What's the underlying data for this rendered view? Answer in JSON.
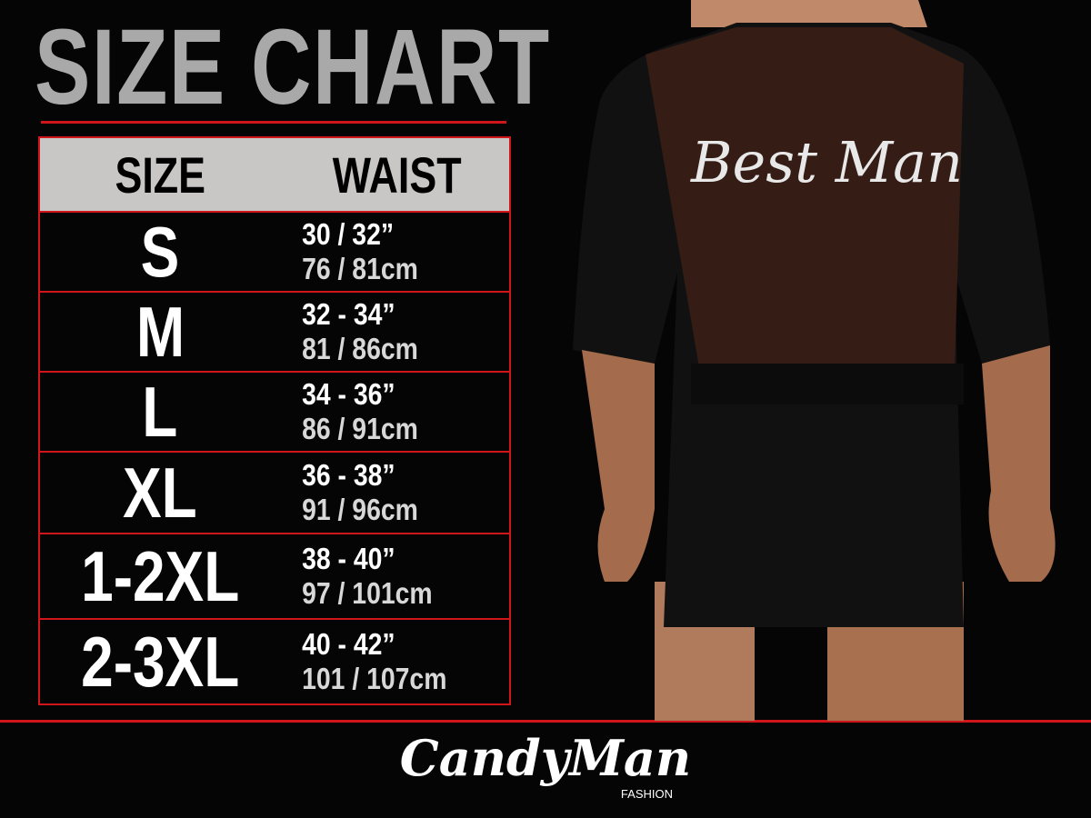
{
  "title": "SIZE CHART",
  "table": {
    "headers": [
      "SIZE",
      "WAIST"
    ],
    "rows": [
      {
        "size": "S",
        "inches": "30 / 32”",
        "cm": "76 / 81cm"
      },
      {
        "size": "M",
        "inches": "32 - 34”",
        "cm": "81 / 86cm"
      },
      {
        "size": "L",
        "inches": "34 - 36”",
        "cm": "86 / 91cm"
      },
      {
        "size": "XL",
        "inches": "36 - 38”",
        "cm": "91 / 96cm"
      },
      {
        "size": "1-2XL",
        "inches": "38 - 40”",
        "cm": "97 / 101cm"
      },
      {
        "size": "2-3XL",
        "inches": "40 - 42”",
        "cm": "101 / 107cm"
      }
    ]
  },
  "product": {
    "print_text": "Best Man"
  },
  "logo": {
    "brand": "CandyMan",
    "sub": "FASHION"
  },
  "colors": {
    "accent": "#d0161b",
    "header_bg": "#c9c6c6",
    "title": "#a9a9a9",
    "background": "#050505"
  }
}
